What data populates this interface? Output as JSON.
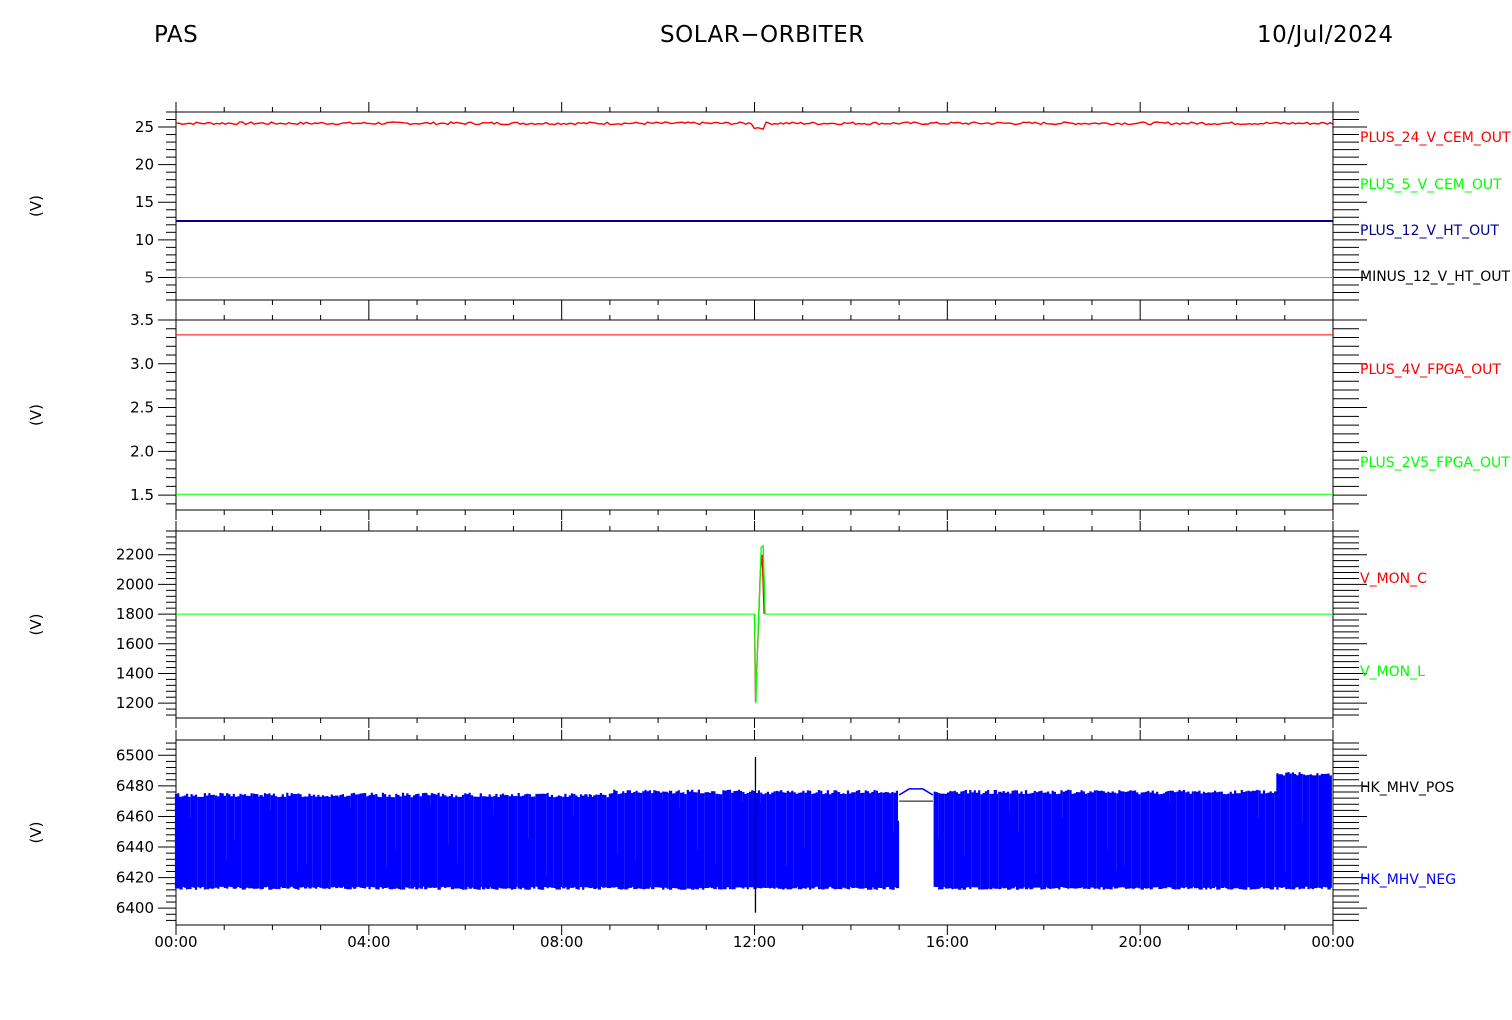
{
  "header": {
    "left": "PAS",
    "center": "SOLAR−ORBITER",
    "right": "10/Jul/2024"
  },
  "chart_data": [
    {
      "type": "line",
      "ylabel": "(V)",
      "ylim": [
        2,
        27
      ],
      "yticks": [
        5,
        10,
        15,
        20,
        25
      ],
      "x_ticks": [
        "00:00",
        "04:00",
        "08:00",
        "12:00",
        "16:00",
        "20:00",
        "00:00"
      ],
      "series": [
        {
          "name": "PLUS_24_V_CEM_OUT",
          "color": "#ff0000",
          "value": 25.5
        },
        {
          "name": "PLUS_5_V_CEM_OUT",
          "color": "#00ff00",
          "value": 5.0
        },
        {
          "name": "PLUS_12_V_HT_OUT",
          "color": "#00008b",
          "value": 12.5
        },
        {
          "name": "MINUS_12_V_HT_OUT",
          "color": "#000000"
        }
      ]
    },
    {
      "type": "line",
      "ylabel": "(V)",
      "ylim": [
        1.33,
        3.5
      ],
      "yticks": [
        1.5,
        2.0,
        2.5,
        3.0,
        3.5
      ],
      "ytick_labels": [
        "1.5",
        "2.0",
        "2.5",
        "3.0",
        "3.5"
      ],
      "series": [
        {
          "name": "PLUS_4V_FPGA_OUT",
          "color": "#ff0000",
          "value": 3.33
        },
        {
          "name": "PLUS_2V5_FPGA_OUT",
          "color": "#00ff00",
          "value": 1.51
        }
      ]
    },
    {
      "type": "line",
      "ylabel": "(V)",
      "ylim": [
        1100,
        2360
      ],
      "yticks": [
        1200,
        1400,
        1600,
        1800,
        2000,
        2200
      ],
      "series": [
        {
          "name": "V_MON_C",
          "color": "#ff0000",
          "spike": {
            "x": [
              12.0,
              12.02,
              12.07,
              12.12,
              12.16,
              12.2
            ],
            "y": [
              1800,
              1210,
              1620,
              2080,
              2200,
              1800
            ]
          }
        },
        {
          "name": "V_MON_L",
          "color": "#00ff00",
          "value": 1800,
          "spike": {
            "x": [
              12.0,
              12.03,
              12.06,
              12.1,
              12.14,
              12.18,
              12.22
            ],
            "y": [
              1800,
              1200,
              1550,
              1900,
              2250,
              2260,
              1800
            ]
          }
        }
      ]
    },
    {
      "type": "area",
      "ylabel": "(V)",
      "ylim": [
        6389,
        6510
      ],
      "yticks": [
        6400,
        6420,
        6440,
        6460,
        6480,
        6500
      ],
      "series": [
        {
          "name": "HK_MHV_POS",
          "color": "#000000"
        },
        {
          "name": "HK_MHV_NEG",
          "color": "#0000ff",
          "low": 6414,
          "high": 6474
        }
      ],
      "gap_hours": [
        15.0,
        15.7
      ],
      "spike": {
        "x": 12.02,
        "ymin": 6397,
        "ymax": 6499
      }
    }
  ]
}
